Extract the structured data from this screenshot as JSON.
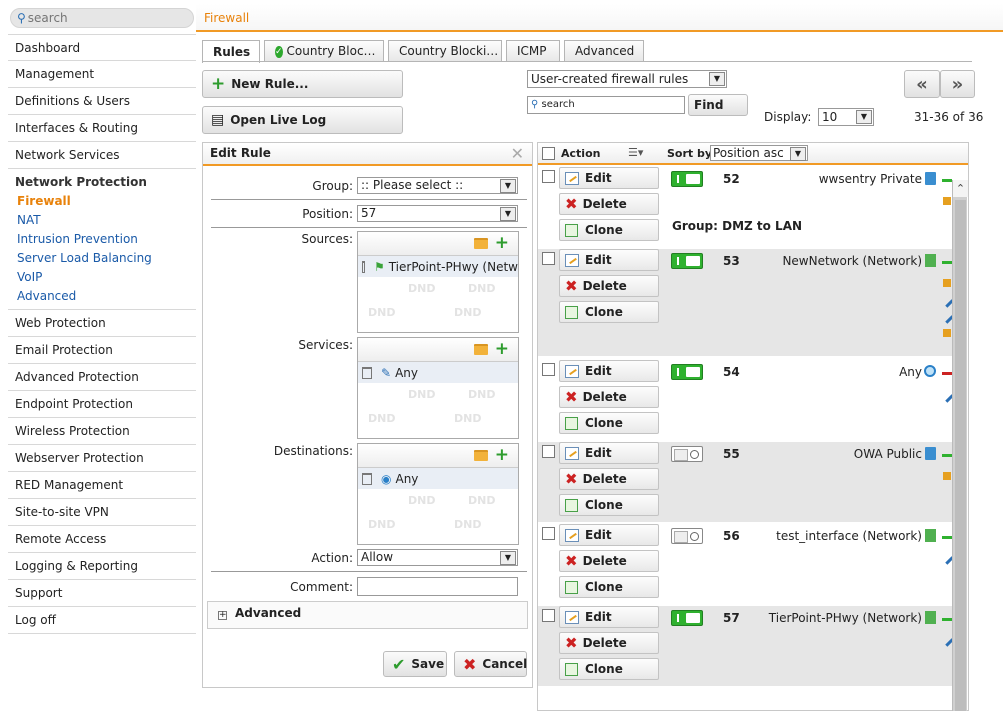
{
  "search": {
    "placeholder": "search"
  },
  "header": {
    "title": "Firewall"
  },
  "sidebar": {
    "items_top": [
      "Dashboard",
      "Management",
      "Definitions & Users",
      "Interfaces & Routing",
      "Network Services"
    ],
    "group": {
      "title": "Network Protection",
      "items": [
        "Firewall",
        "NAT",
        "Intrusion Prevention",
        "Server Load Balancing",
        "VoIP",
        "Advanced"
      ],
      "active": "Firewall"
    },
    "items_bottom": [
      "Web Protection",
      "Email Protection",
      "Advanced Protection",
      "Endpoint Protection",
      "Wireless Protection",
      "Webserver Protection",
      "RED Management",
      "Site-to-site VPN",
      "Remote Access",
      "Logging & Reporting",
      "Support",
      "Log off"
    ]
  },
  "tabs": [
    "Rules",
    "Country Bloc…",
    "Country Blocki…",
    "ICMP",
    "Advanced"
  ],
  "toolbar": {
    "new_rule": "New Rule...",
    "open_live_log": "Open Live Log",
    "filter": "User-created firewall rules",
    "rule_search_placeholder": "search",
    "find": "Find",
    "prev": "«",
    "next": "»",
    "display_label": "Display:",
    "display_value": "10",
    "range": "31-36 of 36"
  },
  "edit_rule": {
    "title": "Edit Rule",
    "close": "✕",
    "group_label": "Group:",
    "group_value": ":: Please select ::",
    "position_label": "Position:",
    "position_value": "57",
    "sources_label": "Sources:",
    "sources_item": "TierPoint-PHwy (Netw",
    "services_label": "Services:",
    "services_item": "Any",
    "destinations_label": "Destinations:",
    "destinations_item": "Any",
    "dnd": "DND",
    "action_label": "Action:",
    "action_value": "Allow",
    "comment_label": "Comment:",
    "comment_value": "",
    "advanced": "Advanced",
    "save": "Save",
    "cancel": "Cancel"
  },
  "list": {
    "action_header": "Action",
    "sort_label": "Sort by:",
    "sort_value": "Position asc",
    "edit": "Edit",
    "delete": "Delete",
    "clone": "Clone",
    "group_label": "Group: DMZ to LAN",
    "rules": [
      {
        "num": "52",
        "source": "wwsentry Private",
        "enabled": true
      },
      {
        "num": "53",
        "source": "NewNetwork (Network)",
        "enabled": true
      },
      {
        "num": "54",
        "source": "Any",
        "enabled": true
      },
      {
        "num": "55",
        "source": "OWA Public",
        "enabled": false
      },
      {
        "num": "56",
        "source": "test_interface (Network)",
        "enabled": false
      },
      {
        "num": "57",
        "source": "TierPoint-PHwy (Network)",
        "enabled": true
      }
    ]
  },
  "colors": {
    "accent": "#f19a25",
    "link": "#1a5aa8",
    "active": "#e8820b"
  }
}
